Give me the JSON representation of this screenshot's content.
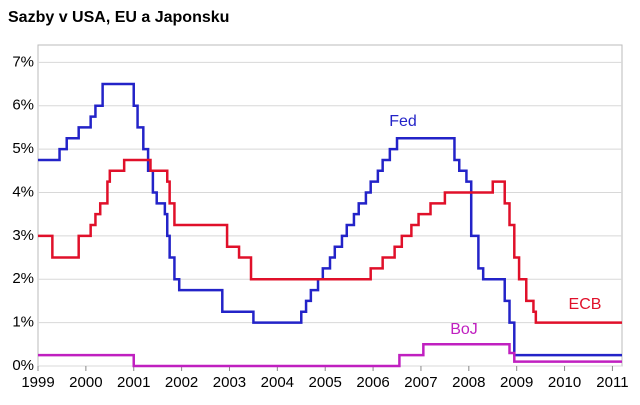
{
  "chart_data": {
    "type": "line",
    "step": "post",
    "title": "Sazby v USA, EU a Japonsku",
    "xlim": [
      1999,
      2011.2
    ],
    "xticks": [
      1999,
      2000,
      2001,
      2002,
      2003,
      2004,
      2005,
      2006,
      2007,
      2008,
      2009,
      2010,
      2011
    ],
    "ylim": [
      0,
      7.4
    ],
    "yticks": [
      {
        "value": 0,
        "label": "0%"
      },
      {
        "value": 1,
        "label": "1%"
      },
      {
        "value": 2,
        "label": "2%"
      },
      {
        "value": 3,
        "label": "3%"
      },
      {
        "value": 4,
        "label": "4%"
      },
      {
        "value": 5,
        "label": "5%"
      },
      {
        "value": 6,
        "label": "6%"
      },
      {
        "value": 7,
        "label": "7%"
      }
    ],
    "grid": true,
    "series": [
      {
        "name": "Fed",
        "color": "#2323c8",
        "x": [
          1999,
          1999.45,
          1999.6,
          1999.85,
          2000.1,
          2000.2,
          2000.35,
          2001.0,
          2001.08,
          2001.2,
          2001.3,
          2001.4,
          2001.48,
          2001.65,
          2001.7,
          2001.75,
          2001.85,
          2001.95,
          2002.85,
          2003.5,
          2004.5,
          2004.6,
          2004.7,
          2004.85,
          2004.95,
          2005.1,
          2005.2,
          2005.35,
          2005.45,
          2005.6,
          2005.7,
          2005.85,
          2005.95,
          2006.1,
          2006.2,
          2006.35,
          2006.5,
          2007.7,
          2007.8,
          2007.95,
          2008.05,
          2008.2,
          2008.3,
          2008.75,
          2008.85,
          2008.95,
          2011.2
        ],
        "values": [
          4.75,
          5.0,
          5.25,
          5.5,
          5.75,
          6.0,
          6.5,
          6.0,
          5.5,
          5.0,
          4.5,
          4.0,
          3.75,
          3.5,
          3.0,
          2.5,
          2.0,
          1.75,
          1.25,
          1.0,
          1.25,
          1.5,
          1.75,
          2.0,
          2.25,
          2.5,
          2.75,
          3.0,
          3.25,
          3.5,
          3.75,
          4.0,
          4.25,
          4.5,
          4.75,
          5.0,
          5.25,
          4.75,
          4.5,
          4.25,
          3.0,
          2.25,
          2.0,
          1.5,
          1.0,
          0.25,
          0.25
        ]
      },
      {
        "name": "ECB",
        "color": "#e0102a",
        "x": [
          1999,
          1999.3,
          1999.85,
          2000.1,
          2000.2,
          2000.3,
          2000.45,
          2000.5,
          2000.8,
          2001.35,
          2001.7,
          2001.75,
          2001.85,
          2002.95,
          2003.2,
          2003.45,
          2005.95,
          2006.2,
          2006.45,
          2006.6,
          2006.8,
          2006.95,
          2007.2,
          2007.5,
          2008.5,
          2008.75,
          2008.85,
          2008.95,
          2009.05,
          2009.2,
          2009.35,
          2009.4,
          2011.2
        ],
        "values": [
          3.0,
          2.5,
          3.0,
          3.25,
          3.5,
          3.75,
          4.25,
          4.5,
          4.75,
          4.5,
          4.25,
          3.75,
          3.25,
          2.75,
          2.5,
          2.0,
          2.25,
          2.5,
          2.75,
          3.0,
          3.25,
          3.5,
          3.75,
          4.0,
          4.25,
          3.75,
          3.25,
          2.5,
          2.0,
          1.5,
          1.25,
          1.0,
          1.0
        ]
      },
      {
        "name": "BoJ",
        "color": "#c020c0",
        "x": [
          1999,
          2001.0,
          2006.55,
          2007.05,
          2008.85,
          2008.95,
          2011.2
        ],
        "values": [
          0.25,
          0.0,
          0.25,
          0.5,
          0.3,
          0.1,
          0.1
        ]
      }
    ]
  }
}
